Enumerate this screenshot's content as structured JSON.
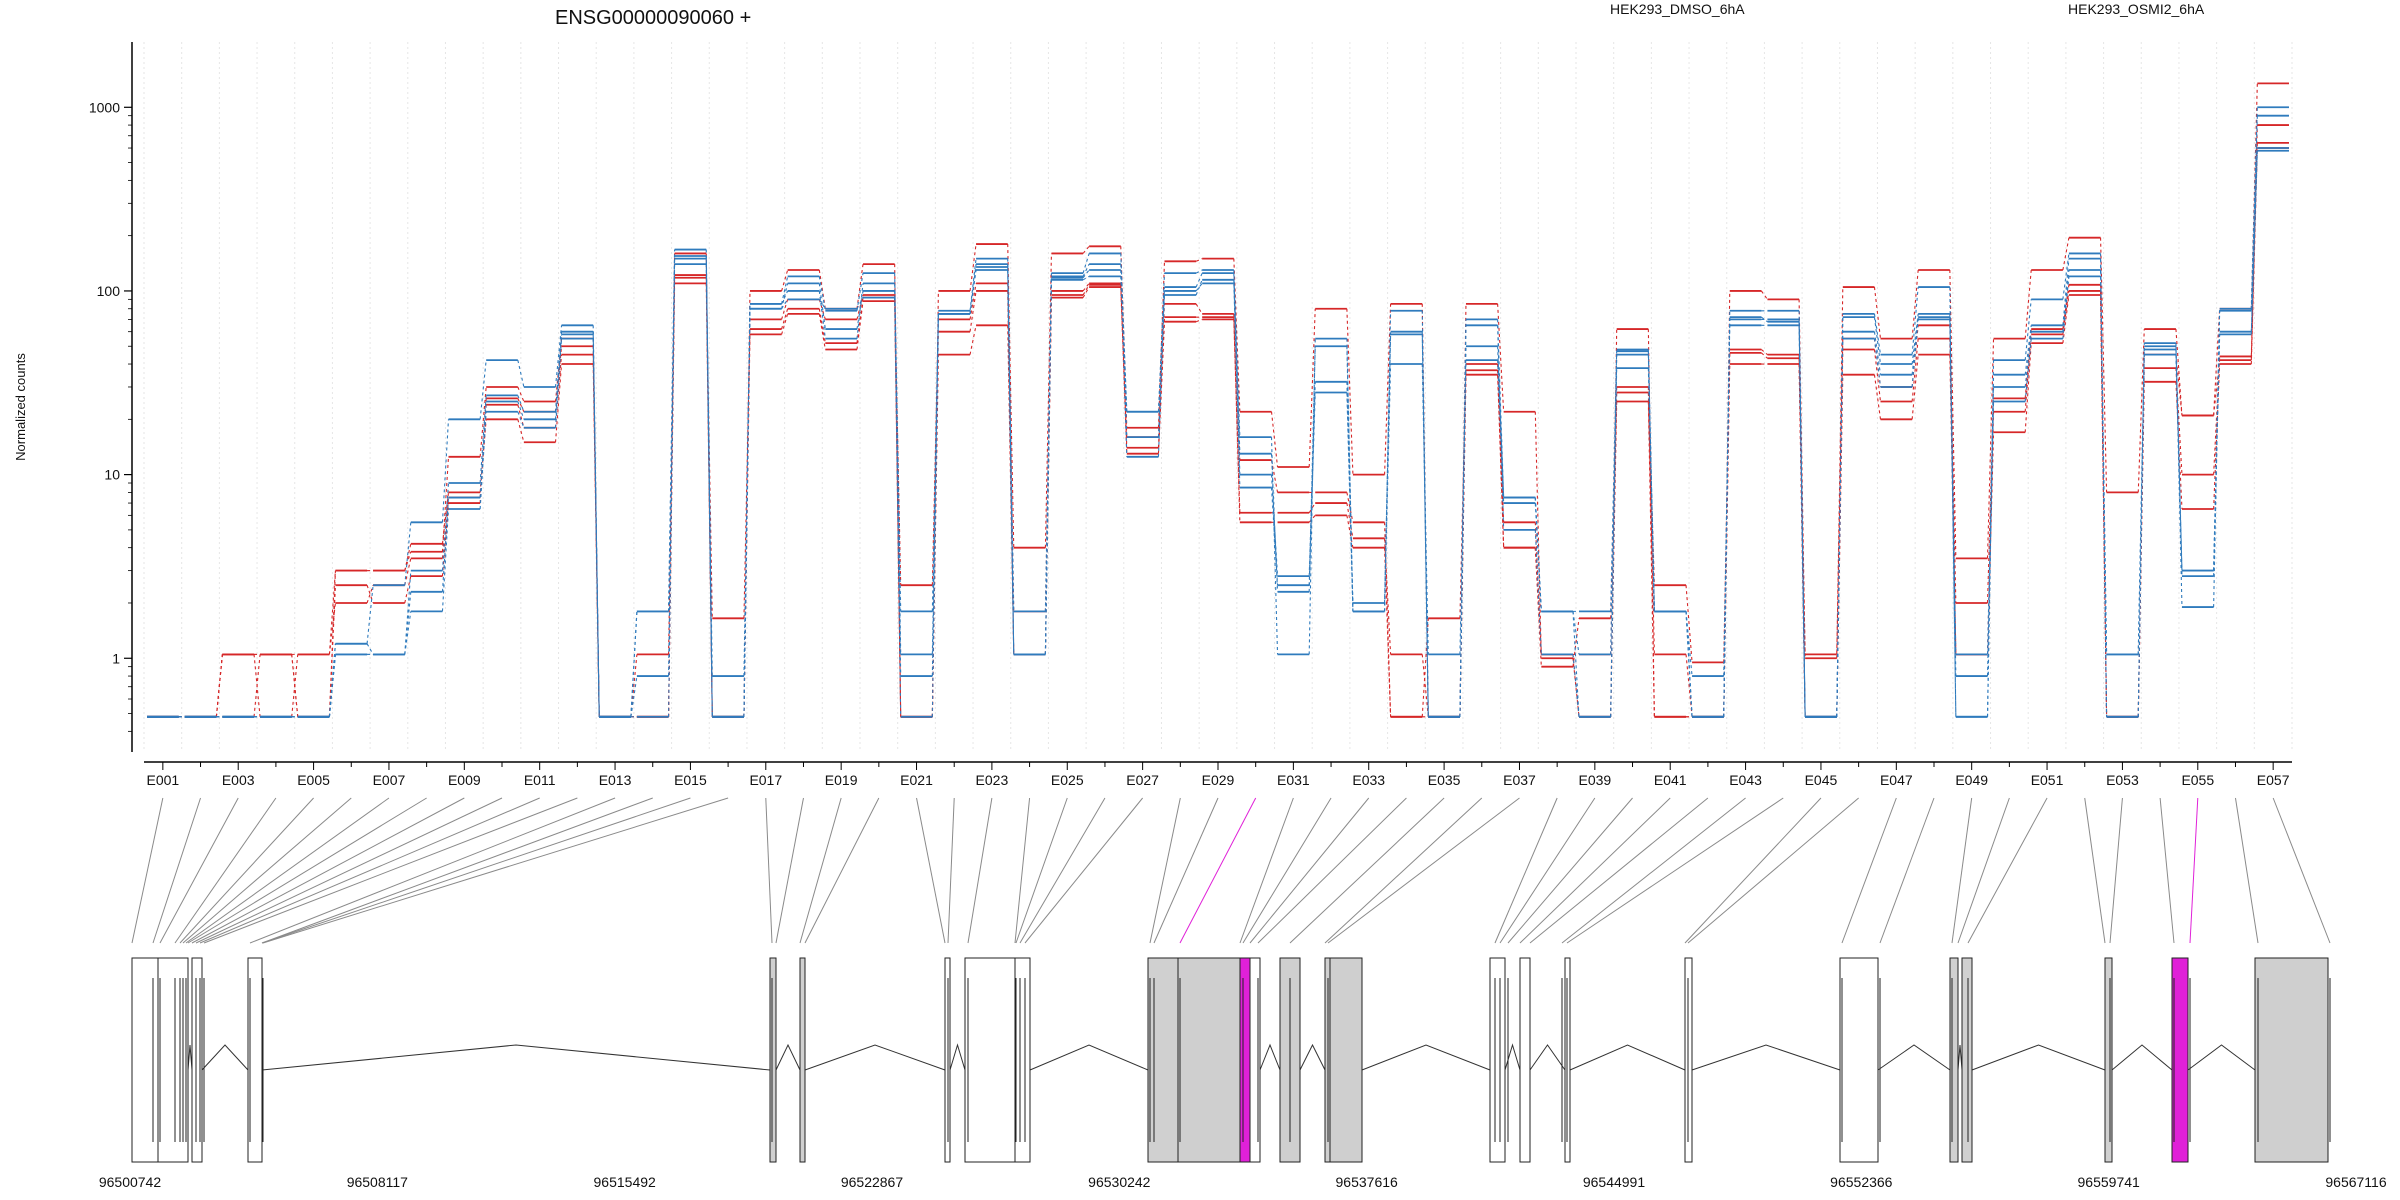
{
  "chart_data": {
    "type": "line",
    "title": "ENSG00000090060 +",
    "ylabel": "Normalized counts",
    "xlabel": "",
    "yscale": "log",
    "ylim": [
      0.35,
      2000
    ],
    "yticks": [
      1,
      10,
      100,
      1000
    ],
    "ytick_labels": [
      "1",
      "10",
      "100",
      "1000"
    ],
    "grid": "vertical dotted lines per exon",
    "legend_placement": "top-right",
    "legend": [
      {
        "label": "HEK293_DMSO_6hA",
        "color": "#d62728"
      },
      {
        "label": "HEK293_OSMI2_6hA",
        "color": "#2f7bbd"
      }
    ],
    "exon_labels": [
      "E001",
      "E003",
      "E005",
      "E007",
      "E009",
      "E011",
      "E013",
      "E015",
      "E017",
      "E019",
      "E021",
      "E023",
      "E025",
      "E027",
      "E029",
      "E031",
      "E033",
      "E035",
      "E037",
      "E039",
      "E041",
      "E043",
      "E045",
      "E047",
      "E049",
      "E051",
      "E053",
      "E055",
      "E057"
    ],
    "series": [
      {
        "name": "HEK293_DMSO_6hA",
        "group": "DMSO",
        "color": "#d62728",
        "values": [
          0.48,
          0.48,
          0.48,
          1.05,
          0.48,
          3.0,
          3.0,
          4.2,
          8.0,
          20,
          15,
          40,
          0.48,
          0.48,
          110,
          0.48,
          58,
          75,
          48,
          88,
          0.48,
          45,
          65,
          1.05,
          92,
          105,
          13,
          68,
          70,
          5.5,
          5.5,
          6.0,
          4.0,
          0.48,
          0.48,
          35,
          4.0,
          1.05,
          0.48,
          25,
          0.48,
          0.48,
          40,
          40,
          0.48,
          35,
          20,
          45,
          1.05,
          17,
          52,
          95,
          0.48,
          32,
          6.5,
          40,
          600
        ]
      },
      {
        "name": "HEK293_DMSO_6hA",
        "group": "DMSO",
        "color": "#d62728",
        "values": [
          0.48,
          0.48,
          1.05,
          0.48,
          1.05,
          2.0,
          2.5,
          3.5,
          7.5,
          24,
          18,
          45,
          0.48,
          1.05,
          118,
          1.65,
          62,
          80,
          52,
          92,
          0.48,
          60,
          100,
          1.05,
          95,
          108,
          14,
          72,
          72,
          6.2,
          6.2,
          7.0,
          4.5,
          1.05,
          0.48,
          37,
          5.5,
          1.05,
          1.05,
          28,
          1.05,
          0.48,
          46,
          43,
          0.48,
          48,
          25,
          55,
          1.05,
          22,
          58,
          100,
          0.48,
          38,
          10,
          44,
          640
        ]
      },
      {
        "name": "HEK293_DMSO_6hA",
        "group": "DMSO",
        "color": "#d62728",
        "values": [
          0.48,
          0.48,
          1.05,
          1.05,
          0.48,
          2.5,
          2.0,
          2.8,
          7.0,
          26,
          22,
          50,
          0.48,
          0.48,
          122,
          0.48,
          70,
          90,
          70,
          95,
          2.5,
          70,
          110,
          1.8,
          100,
          110,
          16,
          85,
          75,
          12,
          8.0,
          8.0,
          5.5,
          0.48,
          1.65,
          40,
          4.0,
          0.9,
          1.65,
          30,
          2.5,
          0.95,
          48,
          45,
          1.05,
          55,
          30,
          65,
          2.0,
          26,
          62,
          108,
          0.48,
          45,
          21,
          42,
          800
        ]
      },
      {
        "name": "HEK293_DMSO_6hA",
        "group": "DMSO",
        "color": "#d62728",
        "values": [
          0.48,
          0.48,
          1.05,
          1.05,
          1.05,
          3.0,
          3.0,
          3.8,
          12.5,
          30,
          25,
          55,
          0.48,
          0.48,
          160,
          0.48,
          100,
          130,
          80,
          140,
          0.48,
          100,
          180,
          4.0,
          160,
          175,
          18,
          145,
          150,
          22,
          11,
          80,
          10,
          85,
          0.48,
          85,
          22,
          1.0,
          0.48,
          62,
          0.48,
          0.48,
          100,
          90,
          1.0,
          105,
          55,
          130,
          3.5,
          55,
          130,
          195,
          8.0,
          62,
          21,
          80,
          1350
        ]
      },
      {
        "name": "HEK293_OSMI2_6hA",
        "group": "OSMI2",
        "color": "#2f7bbd",
        "values": [
          0.48,
          0.48,
          0.48,
          0.48,
          0.48,
          1.05,
          1.05,
          1.8,
          6.5,
          22,
          18,
          55,
          0.48,
          0.8,
          150,
          0.8,
          80,
          90,
          80,
          92,
          0.8,
          75,
          135,
          1.05,
          115,
          120,
          22,
          100,
          110,
          8.5,
          2.5,
          28,
          1.8,
          40,
          1.05,
          42,
          7.0,
          1.8,
          1.05,
          38,
          1.8,
          0.8,
          65,
          65,
          0.48,
          55,
          30,
          70,
          0.8,
          25,
          55,
          120,
          1.05,
          45,
          3.0,
          60,
          580
        ]
      },
      {
        "name": "HEK293_OSMI2_6hA",
        "group": "OSMI2",
        "color": "#2f7bbd",
        "values": [
          0.48,
          0.48,
          0.48,
          0.48,
          0.48,
          1.2,
          1.05,
          2.3,
          7.5,
          25,
          20,
          58,
          0.48,
          1.8,
          155,
          0.48,
          85,
          100,
          55,
          110,
          1.05,
          75,
          140,
          1.05,
          118,
          130,
          16,
          95,
          115,
          10,
          2.8,
          32,
          2.0,
          58,
          0.48,
          50,
          7.5,
          1.8,
          0.48,
          45,
          1.8,
          0.48,
          70,
          70,
          0.48,
          60,
          35,
          72,
          1.05,
          30,
          60,
          130,
          1.05,
          48,
          2.8,
          58,
          600
        ]
      },
      {
        "name": "HEK293_OSMI2_6hA",
        "group": "OSMI2",
        "color": "#2f7bbd",
        "values": [
          0.48,
          0.48,
          0.48,
          0.48,
          0.48,
          1.05,
          1.05,
          3.0,
          9.0,
          27,
          22,
          60,
          0.48,
          0.48,
          140,
          0.48,
          80,
          110,
          62,
          100,
          0.48,
          75,
          130,
          1.05,
          120,
          140,
          12.5,
          105,
          125,
          13,
          2.3,
          50,
          1.8,
          60,
          0.48,
          65,
          5.0,
          1.05,
          0.48,
          47,
          1.8,
          0.48,
          72,
          68,
          0.48,
          72,
          40,
          75,
          0.48,
          35,
          65,
          150,
          0.48,
          50,
          3.0,
          78,
          900
        ]
      },
      {
        "name": "HEK293_OSMI2_6hA",
        "group": "OSMI2",
        "color": "#2f7bbd",
        "values": [
          0.48,
          0.48,
          0.48,
          0.48,
          0.48,
          1.2,
          2.5,
          5.5,
          20,
          42,
          30,
          65,
          0.48,
          1.8,
          168,
          0.48,
          85,
          120,
          78,
          125,
          1.8,
          78,
          150,
          1.8,
          125,
          160,
          22,
          125,
          130,
          16,
          1.05,
          55,
          1.8,
          78,
          0.48,
          70,
          7.5,
          1.8,
          1.8,
          48,
          1.8,
          0.48,
          78,
          78,
          0.48,
          75,
          45,
          105,
          0.48,
          42,
          90,
          160,
          0.48,
          52,
          1.9,
          80,
          1000
        ]
      }
    ]
  },
  "gene_model": {
    "coordinate_labels": [
      "96500742",
      "96508117",
      "96515492",
      "96522867",
      "96530242",
      "96537616",
      "96544991",
      "96552366",
      "96559741",
      "96567116"
    ],
    "highlight_color": "#e020d8",
    "exon_fill_color": "#cfcfcf"
  }
}
